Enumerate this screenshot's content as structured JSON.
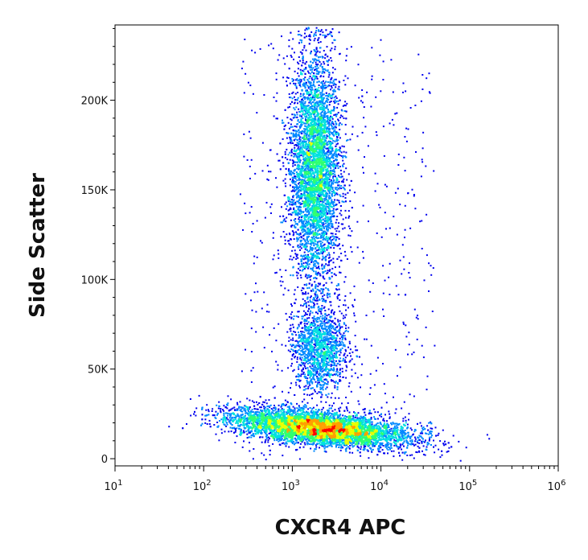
{
  "chart_data": {
    "type": "scatter",
    "style": "density dot plot (flow cytometry)",
    "title": "",
    "xlabel": "CXCR4  APC",
    "ylabel": "Side Scatter",
    "x_scale": "log",
    "xlim": [
      10,
      1000000
    ],
    "ylim": [
      -4000,
      242000
    ],
    "x_ticks": [
      {
        "value": 10,
        "base": "10",
        "exp": "1"
      },
      {
        "value": 100,
        "base": "10",
        "exp": "2"
      },
      {
        "value": 1000,
        "base": "10",
        "exp": "3"
      },
      {
        "value": 10000,
        "base": "10",
        "exp": "4"
      },
      {
        "value": 100000,
        "base": "10",
        "exp": "5"
      },
      {
        "value": 1000000,
        "base": "10",
        "exp": "6"
      }
    ],
    "y_ticks": [
      {
        "value": 0,
        "label": "0"
      },
      {
        "value": 50000,
        "label": "50K"
      },
      {
        "value": 100000,
        "label": "100K"
      },
      {
        "value": 150000,
        "label": "150K"
      },
      {
        "value": 200000,
        "label": "200K"
      }
    ],
    "grid": false,
    "legend": "none",
    "density_colors": [
      "#0000ee",
      "#0088ff",
      "#00e0e0",
      "#30ff70",
      "#e8ff00",
      "#ffa000",
      "#ff0000"
    ],
    "populations": [
      {
        "name": "low SSC population (CXCR4+)",
        "x_center": 3000,
        "x_range": [
          100,
          120000
        ],
        "y_center": 14000,
        "y_range": [
          2000,
          30000
        ],
        "peak_x": 11000,
        "peak_y": 12000
      },
      {
        "name": "high SSC population",
        "x_center": 1800,
        "x_range": [
          300,
          15000
        ],
        "y_center": 160000,
        "y_range": [
          100000,
          242000
        ]
      },
      {
        "name": "intermediate SSC population",
        "x_center": 2000,
        "x_range": [
          400,
          20000
        ],
        "y_center": 60000,
        "y_range": [
          40000,
          90000
        ]
      }
    ]
  }
}
